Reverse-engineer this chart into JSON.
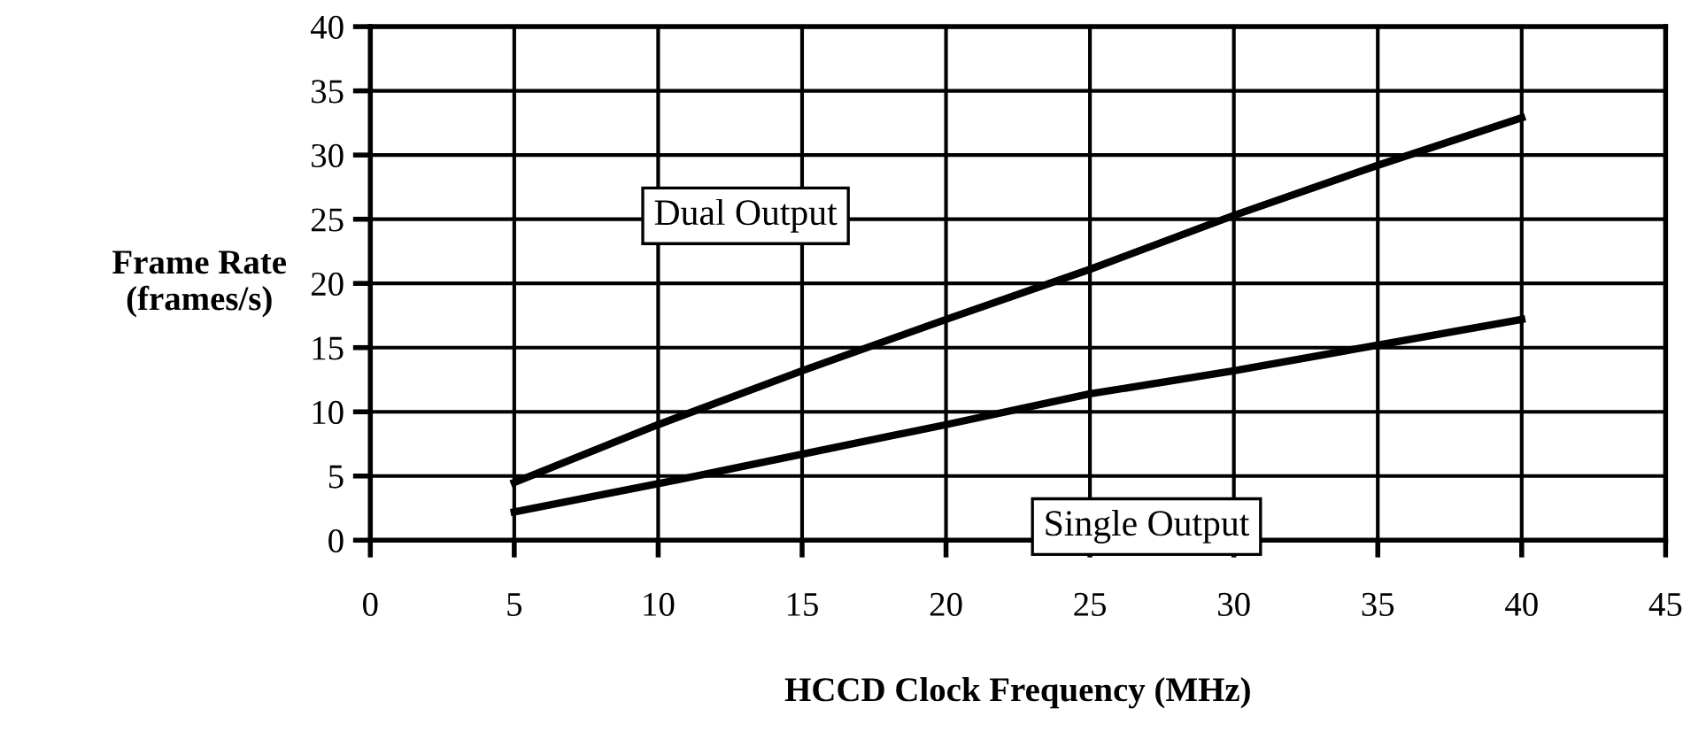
{
  "chart_data": {
    "type": "line",
    "xlabel": "HCCD Clock Frequency (MHz)",
    "ylabel": "Frame Rate\n(frames/s)",
    "x": [
      5,
      10,
      15,
      20,
      25,
      30,
      35,
      40
    ],
    "series": [
      {
        "name": "Dual Output",
        "color": "#000000",
        "values": [
          4.5,
          9.0,
          13.2,
          17.2,
          21.1,
          25.3,
          29.2,
          32.9
        ]
      },
      {
        "name": "Single Output",
        "color": "#000000",
        "values": [
          2.2,
          4.4,
          6.7,
          9.0,
          11.4,
          13.2,
          15.2,
          17.2
        ]
      }
    ],
    "xlim": [
      0,
      45
    ],
    "xticks": [
      0,
      5,
      10,
      15,
      20,
      25,
      30,
      35,
      40,
      45
    ],
    "ylim": [
      0,
      40
    ],
    "yticks": [
      0,
      5,
      10,
      15,
      20,
      25,
      30,
      35,
      40
    ],
    "grid": true,
    "legend": false,
    "marker": "none",
    "line_style": "solid"
  }
}
